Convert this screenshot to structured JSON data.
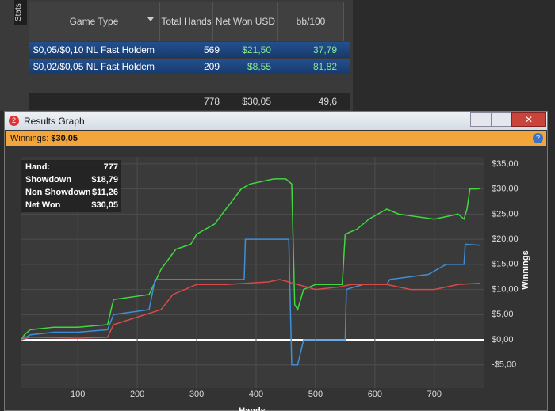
{
  "stats_table": {
    "tab": "Stats",
    "columns": [
      "Game Type",
      "Total Hands",
      "Net Won USD",
      "bb/100"
    ],
    "rows": [
      [
        "$0,05/$0,10 NL Fast Holdem",
        "569",
        "$21,50",
        "37,79"
      ],
      [
        "$0,02/$0,05 NL Fast Holdem",
        "209",
        "$8,55",
        "81,82"
      ]
    ],
    "totals": [
      "778",
      "$30,05",
      "49,6"
    ]
  },
  "window": {
    "title": "Results Graph",
    "summary": {
      "label": "Winnings:",
      "value": "$30,05"
    }
  },
  "info_box": [
    [
      "Hand:",
      "777"
    ],
    [
      "Showdown",
      "$18,79"
    ],
    [
      "Non Showdown",
      "$11,26"
    ],
    [
      "Net Won",
      "$30,05"
    ]
  ],
  "chart_data": {
    "type": "line",
    "xlabel": "Hands",
    "ylabel": "Winnings",
    "xlim": [
      5,
      783
    ],
    "ylim": [
      -9.6,
      36.4
    ],
    "xticks": [
      100,
      200,
      300,
      400,
      500,
      600,
      700
    ],
    "yticks": [
      {
        "value": -5,
        "label": "-$5,00"
      },
      {
        "value": 0,
        "label": "$0,00"
      },
      {
        "value": 5,
        "label": "$5,00"
      },
      {
        "value": 10,
        "label": "$10,00"
      },
      {
        "value": 15,
        "label": "$15,00"
      },
      {
        "value": 20,
        "label": "$20,00"
      },
      {
        "value": 25,
        "label": "$25,00"
      },
      {
        "value": 30,
        "label": "$30,00"
      },
      {
        "value": 35,
        "label": "$35,00"
      }
    ],
    "grid": true,
    "series": [
      {
        "color": "#3fd83f",
        "x": [
          5,
          10,
          20,
          60,
          100,
          150,
          160,
          220,
          240,
          265,
          290,
          300,
          330,
          375,
          390,
          430,
          450,
          460,
          465,
          470,
          480,
          500,
          545,
          550,
          570,
          590,
          620,
          640,
          700,
          740,
          750,
          755,
          760,
          770,
          777
        ],
        "values": [
          0,
          1,
          2,
          2.5,
          2.5,
          3,
          8,
          9,
          14,
          18,
          19,
          21,
          23,
          30,
          31,
          32,
          32,
          31,
          7,
          6,
          10,
          11,
          11,
          21,
          22,
          24,
          26,
          25,
          24,
          25,
          24,
          26,
          30,
          30,
          30.05
        ]
      },
      {
        "color": "#3f8fd8",
        "x": [
          5,
          20,
          60,
          100,
          150,
          160,
          220,
          230,
          270,
          300,
          380,
          382,
          455,
          460,
          470,
          480,
          550,
          552,
          580,
          620,
          625,
          690,
          720,
          750,
          752,
          777
        ],
        "values": [
          0,
          1,
          1.5,
          1.5,
          2,
          5,
          6,
          12,
          12,
          12,
          12,
          20,
          20,
          -5,
          -5,
          0,
          0,
          10,
          11,
          11,
          12,
          13,
          15,
          15,
          19,
          18.79
        ]
      },
      {
        "color": "#d84a4a",
        "x": [
          5,
          20,
          100,
          150,
          160,
          240,
          260,
          300,
          350,
          420,
          440,
          470,
          500,
          540,
          560,
          620,
          660,
          700,
          740,
          777
        ],
        "values": [
          0,
          0.5,
          0.3,
          0.5,
          3,
          6,
          9,
          11,
          11,
          11.5,
          12,
          11,
          10,
          10.5,
          11,
          11,
          10,
          10,
          11,
          11.26
        ]
      }
    ]
  }
}
